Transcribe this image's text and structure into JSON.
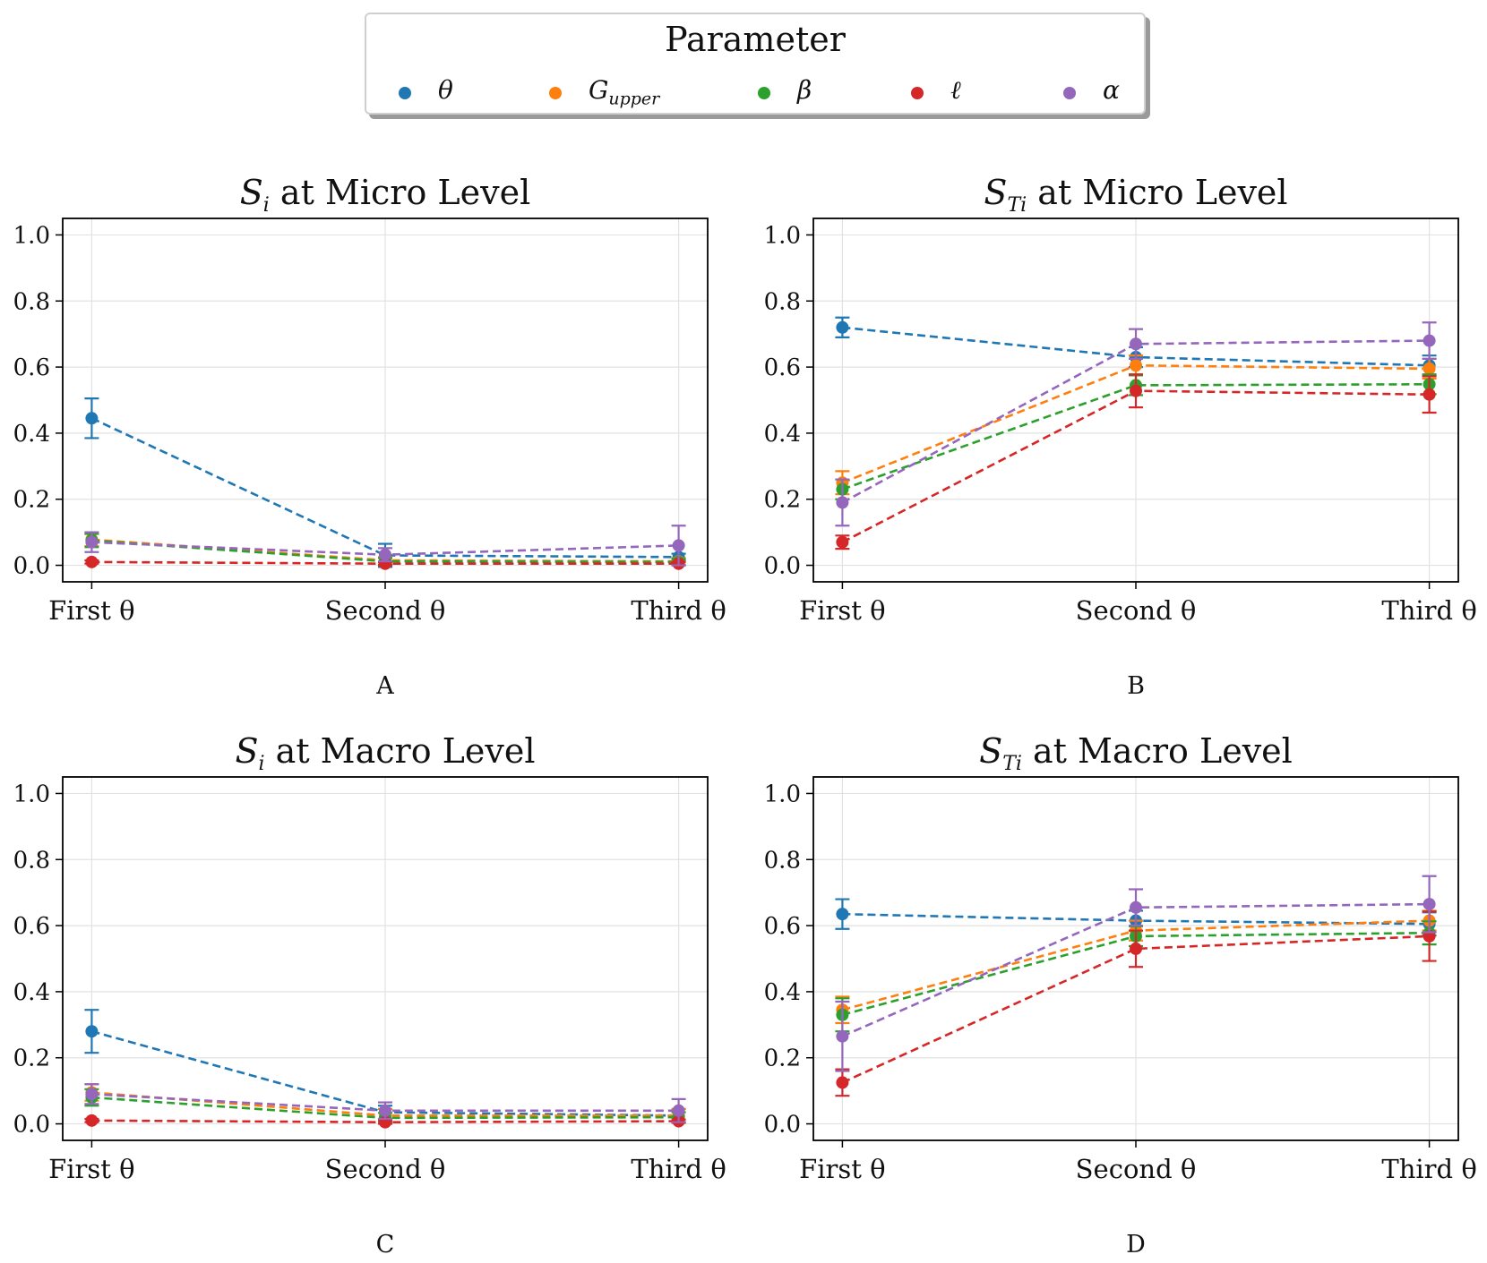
{
  "legend": {
    "title": "Parameter",
    "items": [
      {
        "label": "θ",
        "color": "#1f77b4"
      },
      {
        "label": "G_upper",
        "color": "#ff7f0e"
      },
      {
        "label": "β",
        "color": "#2ca02c"
      },
      {
        "label": "ℓ",
        "color": "#d62728"
      },
      {
        "label": "α",
        "color": "#9467bd"
      }
    ]
  },
  "chart_data": [
    {
      "type": "line",
      "panel_label": "A",
      "title": "S_i at Micro Level",
      "title_symbol": "S",
      "title_sub": "i",
      "title_rest": "at Micro Level",
      "categories": [
        "First θ",
        "Second θ",
        "Third θ"
      ],
      "ylim": [
        -0.05,
        1.05
      ],
      "yticks": [
        "0.0",
        "0.2",
        "0.4",
        "0.6",
        "0.8",
        "1.0"
      ],
      "grid": true,
      "series": [
        {
          "name": "θ",
          "color": "#1f77b4",
          "values": [
            0.445,
            0.03,
            0.025
          ],
          "errors": [
            0.06,
            0.035,
            0.01
          ]
        },
        {
          "name": "G_upper",
          "color": "#ff7f0e",
          "values": [
            0.078,
            0.015,
            0.012
          ],
          "errors": [
            0.02,
            0.01,
            0.01
          ]
        },
        {
          "name": "β",
          "color": "#2ca02c",
          "values": [
            0.075,
            0.012,
            0.01
          ],
          "errors": [
            0.02,
            0.01,
            0.01
          ]
        },
        {
          "name": "ℓ",
          "color": "#d62728",
          "values": [
            0.01,
            0.005,
            0.005
          ],
          "errors": [
            0.005,
            0.005,
            0.005
          ]
        },
        {
          "name": "α",
          "color": "#9467bd",
          "values": [
            0.07,
            0.032,
            0.06
          ],
          "errors": [
            0.03,
            0.02,
            0.06
          ]
        }
      ]
    },
    {
      "type": "line",
      "panel_label": "B",
      "title": "S_Ti at Micro Level",
      "title_symbol": "S",
      "title_sub": "Ti",
      "title_rest": "at Micro Level",
      "categories": [
        "First θ",
        "Second θ",
        "Third θ"
      ],
      "ylim": [
        -0.05,
        1.05
      ],
      "yticks": [
        "0.0",
        "0.2",
        "0.4",
        "0.6",
        "0.8",
        "1.0"
      ],
      "grid": true,
      "series": [
        {
          "name": "θ",
          "color": "#1f77b4",
          "values": [
            0.72,
            0.63,
            0.605
          ],
          "errors": [
            0.03,
            0.03,
            0.03
          ]
        },
        {
          "name": "G_upper",
          "color": "#ff7f0e",
          "values": [
            0.25,
            0.605,
            0.595
          ],
          "errors": [
            0.035,
            0.03,
            0.03
          ]
        },
        {
          "name": "β",
          "color": "#2ca02c",
          "values": [
            0.23,
            0.545,
            0.548
          ],
          "errors": [
            0.03,
            0.03,
            0.03
          ]
        },
        {
          "name": "ℓ",
          "color": "#d62728",
          "values": [
            0.07,
            0.528,
            0.517
          ],
          "errors": [
            0.02,
            0.05,
            0.055
          ]
        },
        {
          "name": "α",
          "color": "#9467bd",
          "values": [
            0.19,
            0.67,
            0.68
          ],
          "errors": [
            0.07,
            0.045,
            0.055
          ]
        }
      ]
    },
    {
      "type": "line",
      "panel_label": "C",
      "title": "S_i at Macro Level",
      "title_symbol": "S",
      "title_sub": "i",
      "title_rest": "at Macro Level",
      "categories": [
        "First θ",
        "Second θ",
        "Third θ"
      ],
      "ylim": [
        -0.05,
        1.05
      ],
      "yticks": [
        "0.0",
        "0.2",
        "0.4",
        "0.6",
        "0.8",
        "1.0"
      ],
      "grid": true,
      "series": [
        {
          "name": "θ",
          "color": "#1f77b4",
          "values": [
            0.28,
            0.035,
            0.025
          ],
          "errors": [
            0.065,
            0.02,
            0.02
          ]
        },
        {
          "name": "G_upper",
          "color": "#ff7f0e",
          "values": [
            0.095,
            0.025,
            0.025
          ],
          "errors": [
            0.025,
            0.02,
            0.02
          ]
        },
        {
          "name": "β",
          "color": "#2ca02c",
          "values": [
            0.08,
            0.018,
            0.02
          ],
          "errors": [
            0.025,
            0.015,
            0.015
          ]
        },
        {
          "name": "ℓ",
          "color": "#d62728",
          "values": [
            0.01,
            0.005,
            0.008
          ],
          "errors": [
            0.005,
            0.005,
            0.005
          ]
        },
        {
          "name": "α",
          "color": "#9467bd",
          "values": [
            0.09,
            0.04,
            0.04
          ],
          "errors": [
            0.03,
            0.025,
            0.035
          ]
        }
      ]
    },
    {
      "type": "line",
      "panel_label": "D",
      "title": "S_Ti at Macro Level",
      "title_symbol": "S",
      "title_sub": "Ti",
      "title_rest": "at Macro Level",
      "categories": [
        "First θ",
        "Second θ",
        "Third θ"
      ],
      "ylim": [
        -0.05,
        1.05
      ],
      "yticks": [
        "0.0",
        "0.2",
        "0.4",
        "0.6",
        "0.8",
        "1.0"
      ],
      "grid": true,
      "series": [
        {
          "name": "θ",
          "color": "#1f77b4",
          "values": [
            0.635,
            0.615,
            0.605
          ],
          "errors": [
            0.045,
            0.03,
            0.035
          ]
        },
        {
          "name": "G_upper",
          "color": "#ff7f0e",
          "values": [
            0.345,
            0.585,
            0.615
          ],
          "errors": [
            0.04,
            0.03,
            0.03
          ]
        },
        {
          "name": "β",
          "color": "#2ca02c",
          "values": [
            0.33,
            0.568,
            0.578
          ],
          "errors": [
            0.05,
            0.03,
            0.035
          ]
        },
        {
          "name": "ℓ",
          "color": "#d62728",
          "values": [
            0.125,
            0.53,
            0.568
          ],
          "errors": [
            0.04,
            0.055,
            0.075
          ]
        },
        {
          "name": "α",
          "color": "#9467bd",
          "values": [
            0.265,
            0.655,
            0.665
          ],
          "errors": [
            0.105,
            0.055,
            0.085
          ]
        }
      ]
    }
  ]
}
